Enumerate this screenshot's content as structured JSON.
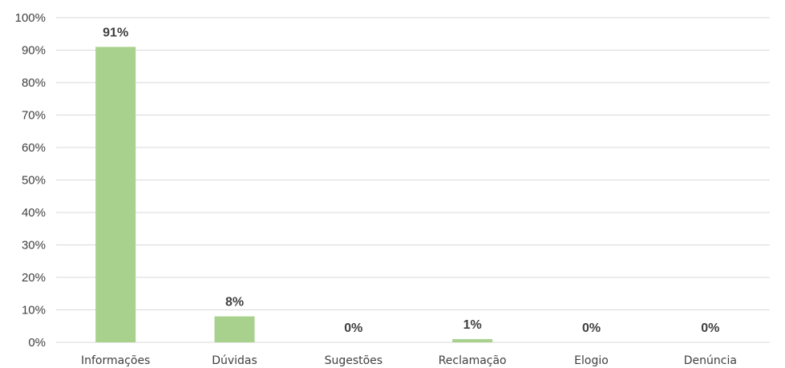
{
  "chart_data": {
    "type": "bar",
    "title": "",
    "xlabel": "",
    "ylabel": "",
    "categories": [
      "Informações",
      "Dúvidas",
      "Sugestões",
      "Reclamação",
      "Elogio",
      "Denúncia"
    ],
    "values": [
      91,
      8,
      0,
      1,
      0,
      0
    ],
    "data_labels": [
      "91%",
      "8%",
      "0%",
      "1%",
      "0%",
      "0%"
    ],
    "ylim": [
      0,
      100
    ],
    "yticks": [
      "0%",
      "10%",
      "20%",
      "30%",
      "40%",
      "50%",
      "60%",
      "70%",
      "80%",
      "90%",
      "100%"
    ],
    "grid": true,
    "legend": "none",
    "colors": {
      "bar": "#a9d18e",
      "grid": "#d9d9d9",
      "text": "#404040"
    }
  }
}
